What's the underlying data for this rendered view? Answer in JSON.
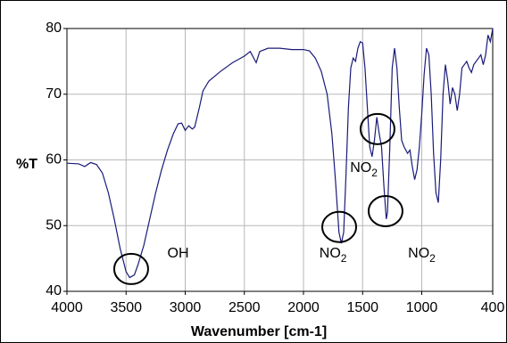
{
  "chart_data": {
    "type": "line",
    "x_label": "Wavenumber [cm-1]",
    "y_label": "%T",
    "xlim": [
      4000,
      400
    ],
    "ylim": [
      40,
      80
    ],
    "xticks": [
      4000,
      3500,
      3000,
      2500,
      2000,
      1500,
      1000,
      400
    ],
    "yticks": [
      40,
      50,
      60,
      70,
      80
    ],
    "grid": true,
    "color": "#1a1a7a",
    "x": [
      4000,
      3900,
      3850,
      3800,
      3750,
      3700,
      3650,
      3600,
      3550,
      3500,
      3470,
      3430,
      3400,
      3350,
      3300,
      3250,
      3200,
      3150,
      3100,
      3060,
      3030,
      3000,
      2970,
      2940,
      2920,
      2880,
      2850,
      2800,
      2700,
      2600,
      2500,
      2450,
      2400,
      2370,
      2300,
      2200,
      2100,
      2000,
      1950,
      1900,
      1850,
      1800,
      1760,
      1730,
      1700,
      1680,
      1660,
      1640,
      1620,
      1600,
      1580,
      1560,
      1540,
      1520,
      1500,
      1480,
      1460,
      1440,
      1420,
      1400,
      1380,
      1360,
      1340,
      1320,
      1300,
      1290,
      1270,
      1250,
      1230,
      1210,
      1190,
      1170,
      1150,
      1120,
      1100,
      1080,
      1060,
      1040,
      1020,
      1000,
      980,
      960,
      940,
      920,
      900,
      880,
      860,
      840,
      820,
      800,
      780,
      760,
      740,
      720,
      700,
      680,
      660,
      640,
      620,
      600,
      580,
      560,
      540,
      520,
      500,
      480,
      460,
      440,
      420,
      400
    ],
    "values": [
      59.5,
      59.4,
      59.0,
      59.6,
      59.3,
      58.0,
      55,
      51,
      46.5,
      43,
      42.1,
      42.5,
      44,
      47,
      51,
      55,
      58.5,
      61.5,
      64,
      65.5,
      65.6,
      64.5,
      65.2,
      64.7,
      65.0,
      68,
      70.5,
      72,
      73.5,
      74.8,
      75.8,
      76.5,
      74.8,
      76.5,
      77,
      77,
      76.8,
      76.8,
      76.6,
      75.5,
      73.5,
      70,
      64,
      57,
      49,
      47.3,
      49,
      58,
      68,
      74,
      75.5,
      75,
      77,
      78,
      77.8,
      74,
      68,
      62,
      60.5,
      63,
      66.5,
      64,
      62,
      56,
      51,
      52,
      62,
      74,
      77,
      74,
      68,
      63,
      62,
      61,
      61.5,
      59,
      57,
      58.5,
      62,
      67,
      73,
      77,
      76,
      70,
      61,
      55,
      53.5,
      60,
      70,
      74.5,
      72,
      68.5,
      71,
      70,
      67.5,
      70,
      74,
      74.5,
      75,
      74,
      73.3,
      74.5,
      75,
      75.5,
      76,
      74.5,
      76,
      79,
      78,
      80
    ],
    "annotations": [
      {
        "text": "OH",
        "x": 3060,
        "y": 45.7
      },
      {
        "text": "NO",
        "subscript": "2",
        "x": 1750,
        "y": 45.7
      },
      {
        "text": "NO",
        "subscript": "2",
        "x": 1490,
        "y": 58.7
      },
      {
        "text": "NO",
        "subscript": "2",
        "x": 1000,
        "y": 45.7
      }
    ],
    "highlights": [
      {
        "x": 3457,
        "y": 43.4
      },
      {
        "x": 1698,
        "y": 49.8
      },
      {
        "x": 1374,
        "y": 64.7
      },
      {
        "x": 1306,
        "y": 52.2
      }
    ]
  }
}
